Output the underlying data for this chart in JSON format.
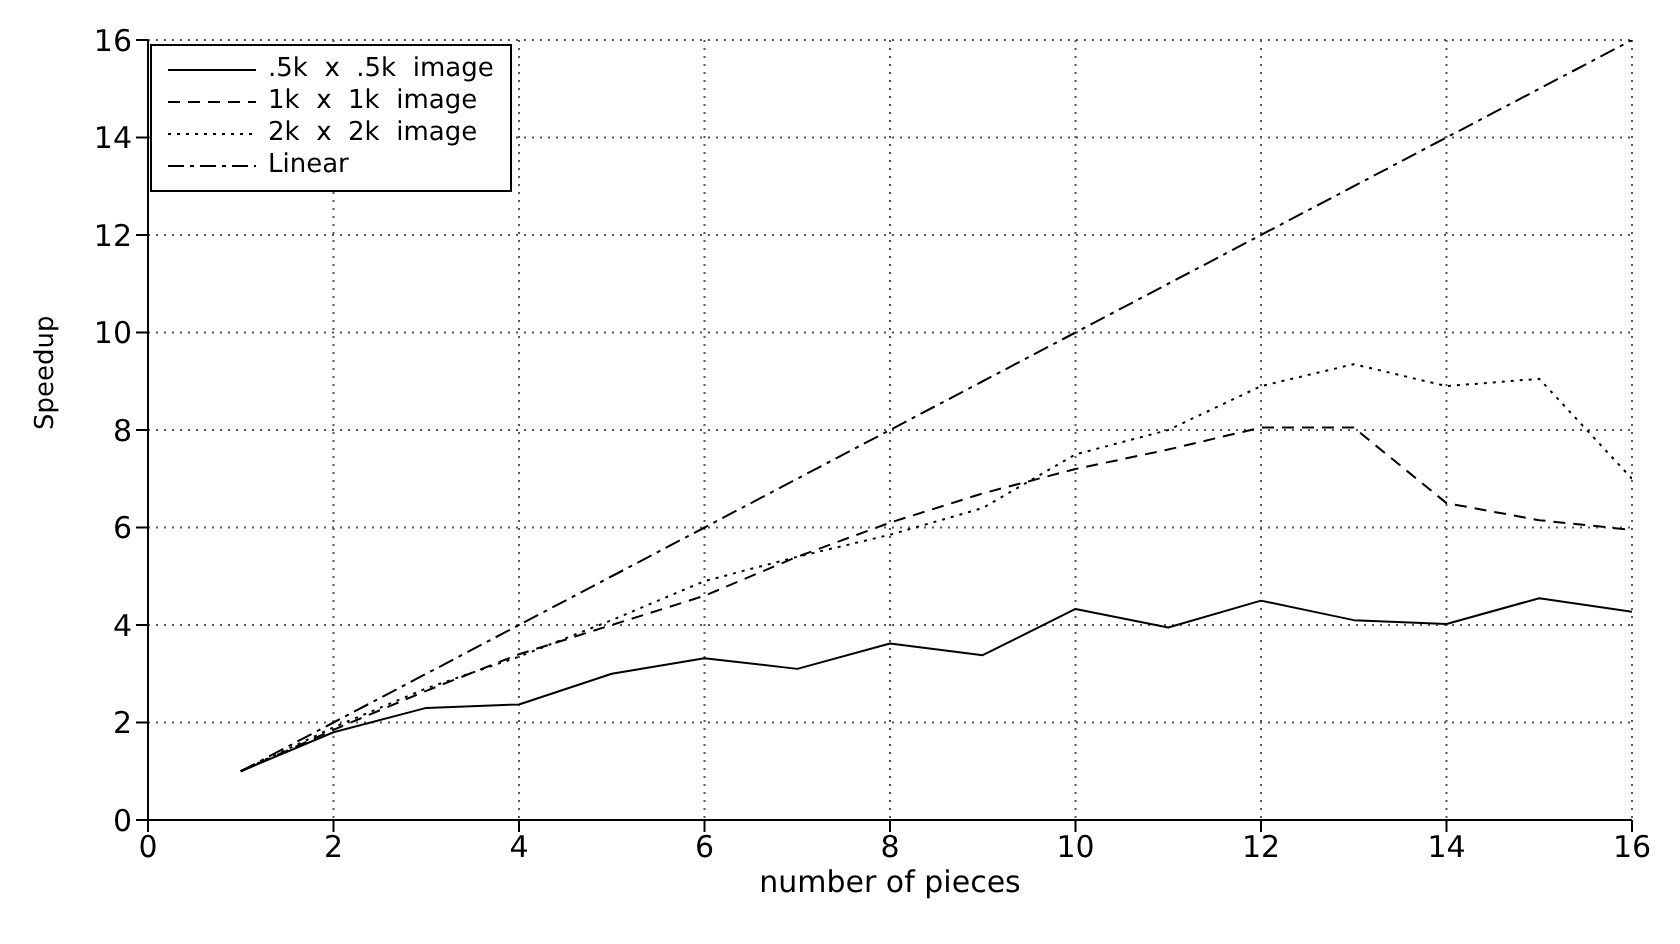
{
  "chart_data": {
    "type": "line",
    "xlabel": "number of pieces",
    "ylabel": "Speedup",
    "x": [
      1,
      2,
      3,
      4,
      5,
      6,
      7,
      8,
      9,
      10,
      11,
      12,
      13,
      14,
      15,
      16
    ],
    "series": [
      {
        "name": ".5k  x  .5k  image",
        "color": "#000000",
        "line_style": "solid",
        "values": [
          1,
          1.8,
          2.3,
          2.37,
          3,
          3.32,
          3.1,
          3.62,
          3.38,
          4.33,
          3.95,
          4.5,
          4.1,
          4.02,
          4.55,
          4.27
        ]
      },
      {
        "name": "1k  x  1k  image",
        "color": "#000000",
        "line_style": "dashed",
        "values": [
          1,
          1.85,
          2.65,
          3.4,
          4,
          4.6,
          5.4,
          6.1,
          6.7,
          7.2,
          7.6,
          8.05,
          8.05,
          6.5,
          6.15,
          5.95
        ]
      },
      {
        "name": "2k  x  2k  image",
        "color": "#000000",
        "line_style": "dotted",
        "values": [
          1,
          1.9,
          2.7,
          3.35,
          4.1,
          4.9,
          5.4,
          5.85,
          6.4,
          7.5,
          8,
          8.9,
          9.35,
          8.9,
          9.05,
          7
        ]
      },
      {
        "name": "Linear",
        "color": "#000000",
        "line_style": "dashdot",
        "values": [
          1,
          2,
          3,
          4,
          5,
          6,
          7,
          8,
          9,
          10,
          11,
          12,
          13,
          14,
          15,
          16
        ]
      }
    ],
    "xlim": [
      0,
      16
    ],
    "xticks": [
      0,
      2,
      4,
      6,
      8,
      10,
      12,
      14,
      16
    ],
    "ylim": [
      0,
      16
    ],
    "yticks": [
      0,
      2,
      4,
      6,
      8,
      10,
      12,
      14,
      16
    ],
    "grid": true,
    "legend": "top left",
    "marker": "none"
  }
}
